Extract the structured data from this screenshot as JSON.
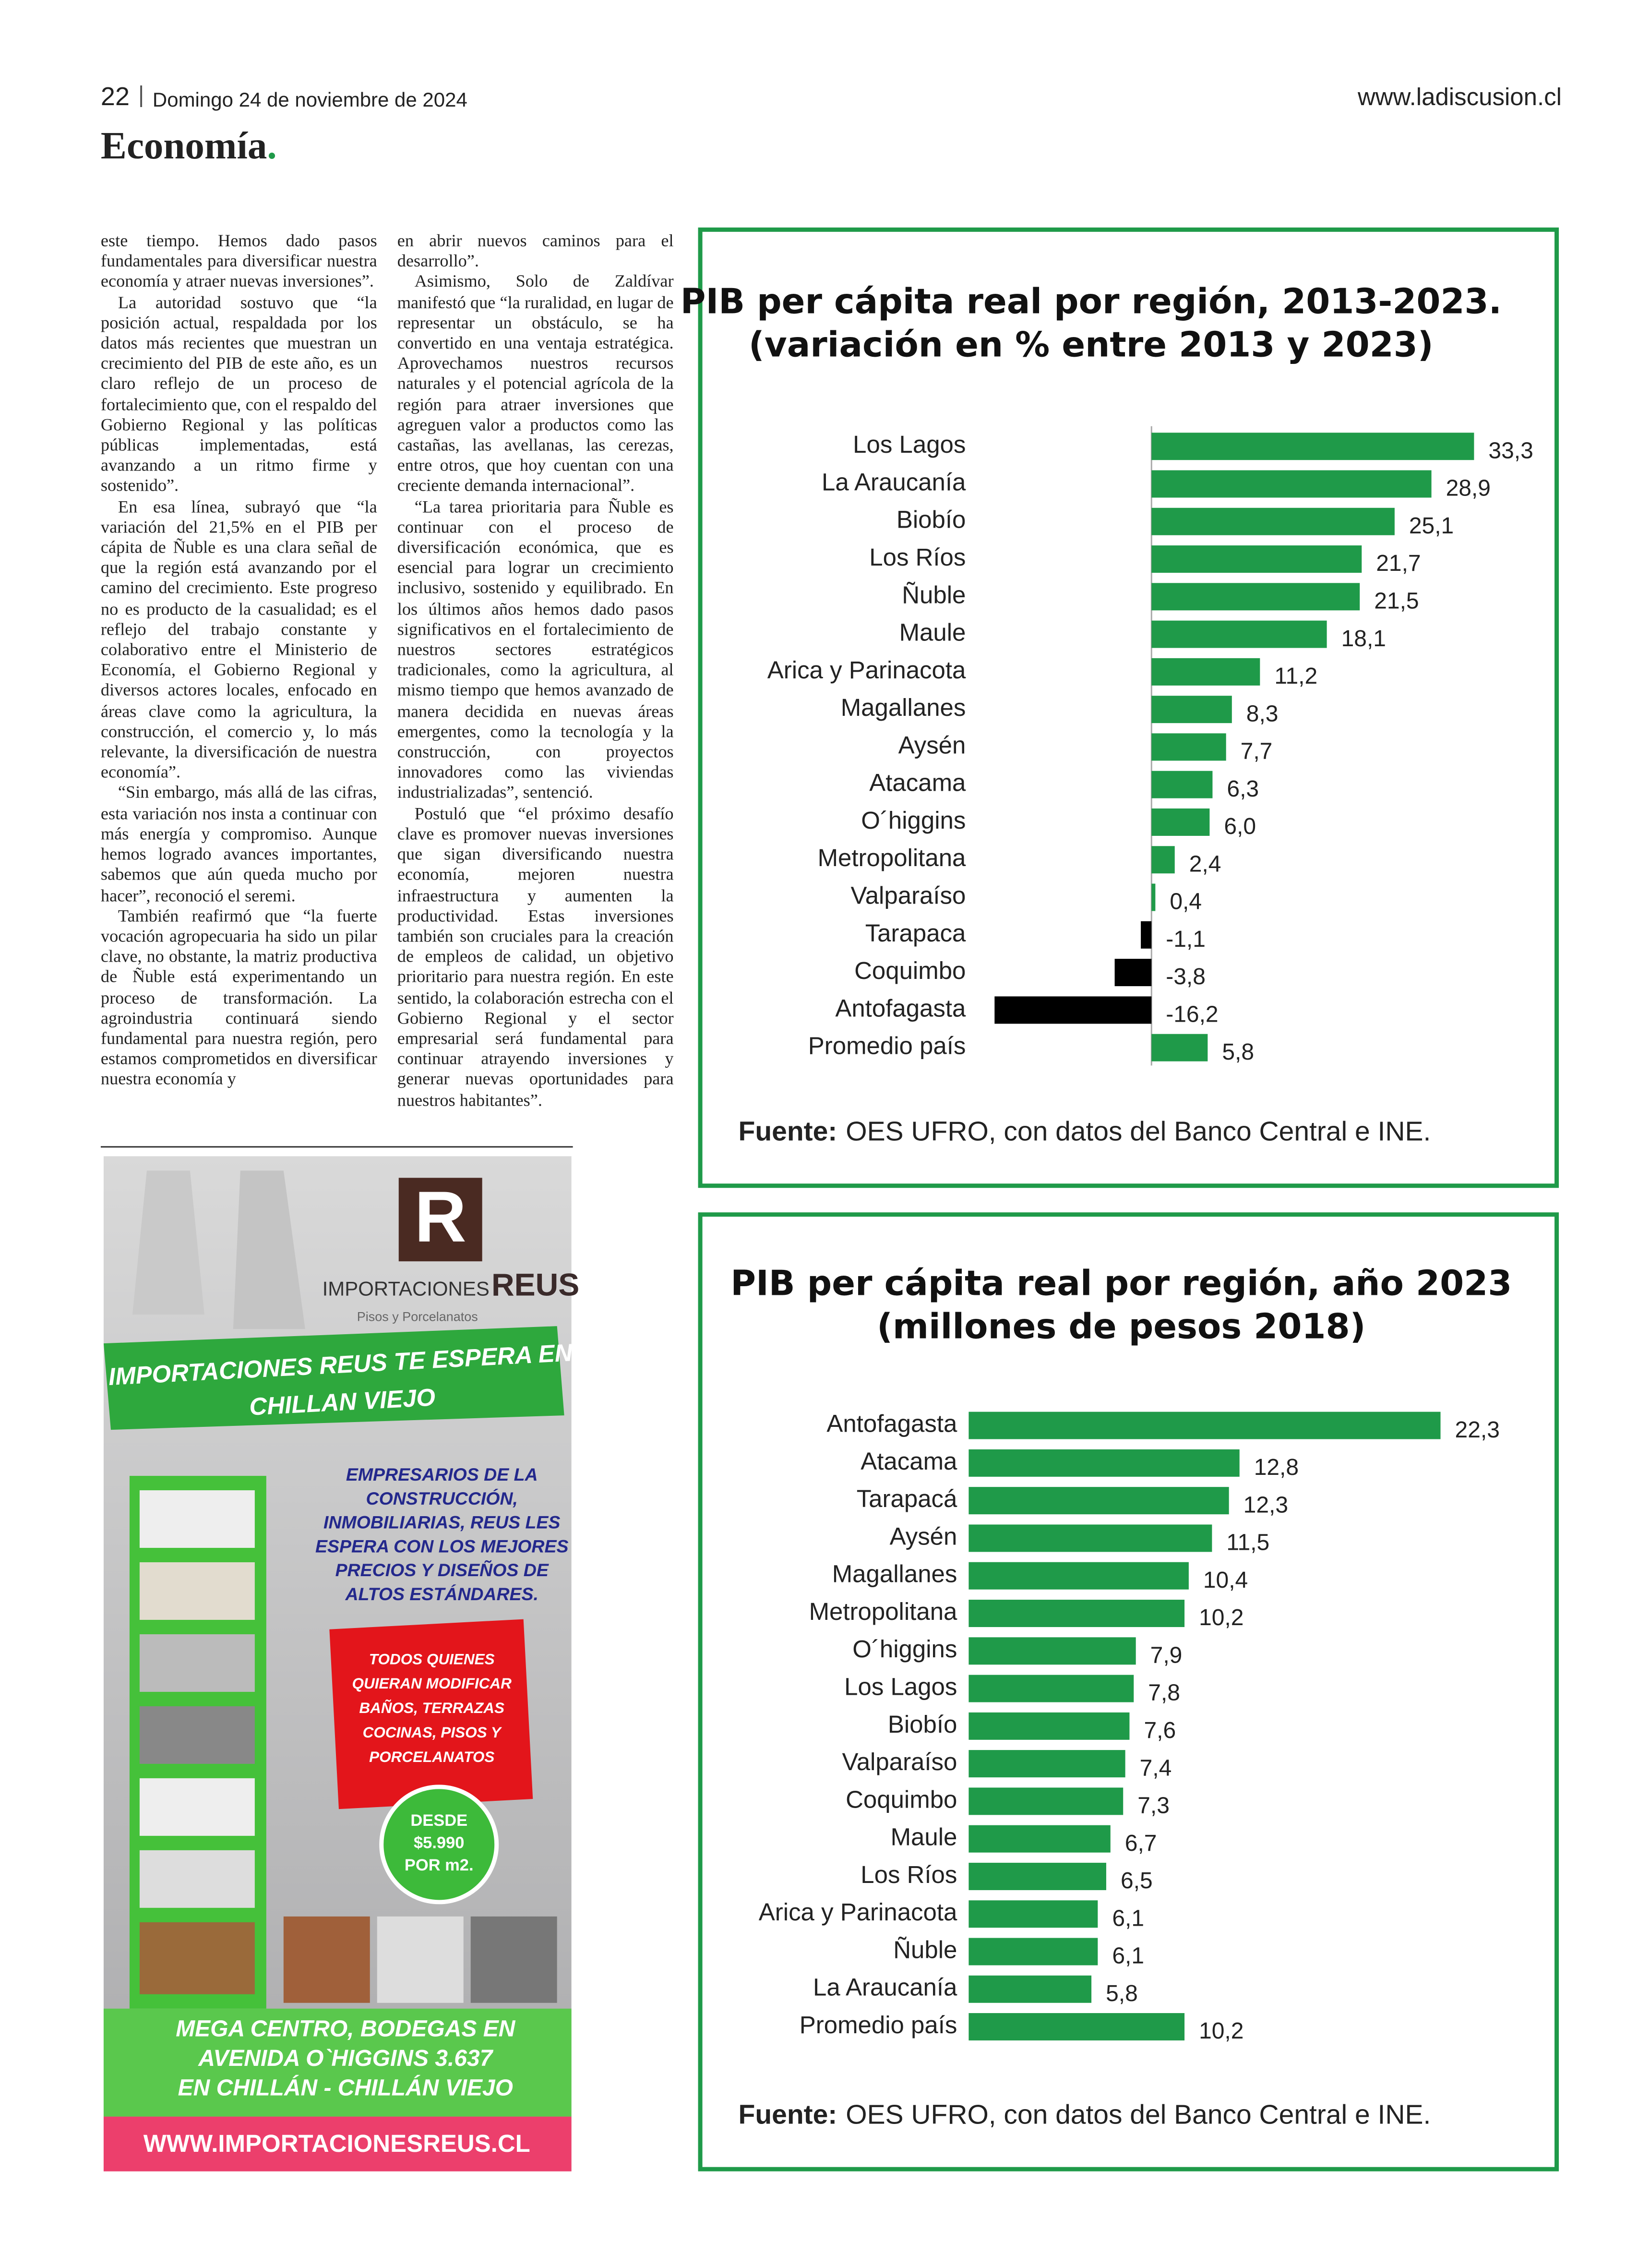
{
  "header": {
    "page_number": "22",
    "date": "Domingo 24 de noviembre de 2024",
    "website": "www.ladiscusion.cl",
    "section": "Economía"
  },
  "article": {
    "columns": [
      [
        "este tiempo. Hemos dado pasos fundamentales para diversificar nuestra economía y atraer nuevas inversiones”.",
        "La autoridad sostuvo que “la posición actual, respaldada por los datos más recientes que muestran un crecimiento del PIB de este año, es un claro reflejo de un proceso de fortalecimiento que, con el respaldo del Gobierno Regional y las políticas públicas implementadas, está avanzando a un ritmo firme y sostenido”.",
        "En esa línea, subrayó que “la variación del 21,5% en el PIB per cápita de Ñuble es una clara señal de que la región está avanzando por el camino del crecimiento. Este progreso no es producto de la casualidad; es el reflejo del trabajo constante y colaborativo entre el Ministerio de Economía, el Gobierno Regional y diversos actores locales, enfocado en áreas clave como la agricultura, la construcción, el comercio y, lo más relevante, la diversificación de nuestra economía”.",
        "“Sin embargo, más allá de las cifras, esta variación nos insta a continuar con más energía y compromiso. Aunque hemos logrado avances importantes, sabemos que aún queda mucho por hacer”, reconoció el seremi.",
        "También reafirmó que “la fuerte vocación agropecuaria ha sido un pilar clave, no obstante, la matriz productiva de Ñuble está experimentando un proceso de transformación. La agroindustria continuará siendo fundamental para nuestra región, pero estamos comprometidos en diversificar nuestra economía y"
      ],
      [
        "en abrir nuevos caminos para el desarrollo”.",
        "Asimismo, Solo de Zaldívar manifestó que “la ruralidad, en lugar de representar un obstáculo, se ha convertido en una ventaja estratégica. Aprovechamos nuestros recursos naturales y el potencial agrícola de la región para atraer inversiones que agreguen valor a productos como las castañas, las avellanas, las cerezas, entre otros, que hoy cuentan con una creciente demanda internacional”.",
        "“La tarea prioritaria para Ñuble es continuar con el proceso de diversificación económica, que es esencial para lograr un crecimiento inclusivo, sostenido y equilibrado. En los últimos años hemos dado pasos significativos en el fortalecimiento de nuestros sectores estratégicos tradicionales, como la agricultura, al mismo tiempo que hemos avanzado de manera decidida en nuevas áreas emergentes, como la tecnología y la construcción, con proyectos innovadores como las viviendas industrializadas”, sentenció.",
        "Postuló que “el próximo desafío clave es promover nuevas inversiones que sigan diversificando nuestra economía, mejoren nuestra infraestructura y aumenten la productividad. Estas inversiones también son cruciales para la creación de empleos de calidad, un objetivo prioritario para nuestra región. En este sentido, la colaboración estrecha con el Gobierno Regional y el sector empresarial será fundamental para continuar atrayendo inversiones y generar nuevas oportunidades para nuestros habitantes”."
      ]
    ]
  },
  "ad": {
    "logo_letter": "R",
    "brand_1": "IMPORTACIONES",
    "brand_2": "REUS",
    "tagline": "Pisos y Porcelanatos",
    "banner": [
      "IMPORTACIONES REUS TE ESPERA EN",
      "CHILLAN VIEJO"
    ],
    "message": [
      "EMPRESARIOS DE LA",
      "CONSTRUCCIÓN,",
      "INMOBILIARIAS, REUS LES",
      "ESPERA CON LOS MEJORES",
      "PRECIOS Y DISEÑOS DE",
      "ALTOS ESTÁNDARES."
    ],
    "offer": [
      "TODOS QUIENES",
      "QUIERAN MODIFICAR",
      "BAÑOS, TERRAZAS",
      "COCINAS, PISOS Y",
      "PORCELANATOS"
    ],
    "price": [
      "DESDE",
      "$5.990",
      "POR m2."
    ],
    "address": [
      "MEGA CENTRO, BODEGAS EN",
      "AVENIDA O`HIGGINS 3.637",
      "EN CHILLÁN - CHILLÁN VIEJO"
    ],
    "url": "WWW.IMPORTACIONESREUS.CL"
  },
  "chart_data": [
    {
      "type": "bar",
      "orientation": "horizontal",
      "title": "PIB per cápita real por región, 2013-2023.",
      "subtitle": "(variación en % entre 2013 y 2023)",
      "categories": [
        "Los Lagos",
        "La Araucanía",
        "Biobío",
        "Los Ríos",
        "Ñuble",
        "Maule",
        "Arica y Parinacota",
        "Magallanes",
        "Aysén",
        "Atacama",
        "O´higgins",
        "Metropolitana",
        "Valparaíso",
        "Tarapaca",
        "Coquimbo",
        "Antofagasta",
        "Promedio país"
      ],
      "values": [
        33.3,
        28.9,
        25.1,
        21.7,
        21.5,
        18.1,
        11.2,
        8.3,
        7.7,
        6.3,
        6.0,
        2.4,
        0.4,
        -1.1,
        -3.8,
        -16.2,
        5.8
      ],
      "value_labels": [
        "33,3",
        "28,9",
        "25,1",
        "21,7",
        "21,5",
        "18,1",
        "11,2",
        "8,3",
        "7,7",
        "6,3",
        "6,0",
        "2,4",
        "0,4",
        "-1,1",
        "-3,8",
        "-16,2",
        "5,8"
      ],
      "color": "#1f9a49",
      "negative_color": "#000000",
      "source_label": "Fuente:",
      "source": "OES UFRO, con datos del Banco Central e INE."
    },
    {
      "type": "bar",
      "orientation": "horizontal",
      "title": "PIB per cápita real por región, año 2023",
      "subtitle": "(millones de pesos 2018)",
      "categories": [
        "Antofagasta",
        "Atacama",
        "Tarapacá",
        "Aysén",
        "Magallanes",
        "Metropolitana",
        "O´higgins",
        "Los Lagos",
        "Biobío",
        "Valparaíso",
        "Coquimbo",
        "Maule",
        "Los Ríos",
        "Arica y Parinacota",
        "Ñuble",
        "La Araucanía",
        "Promedio país"
      ],
      "values": [
        22.3,
        12.8,
        12.3,
        11.5,
        10.4,
        10.2,
        7.9,
        7.8,
        7.6,
        7.4,
        7.3,
        6.7,
        6.5,
        6.1,
        6.1,
        5.8,
        10.2
      ],
      "value_labels": [
        "22,3",
        "12,8",
        "12,3",
        "11,5",
        "10,4",
        "10,2",
        "7,9",
        "7,8",
        "7,6",
        "7,4",
        "7,3",
        "6,7",
        "6,5",
        "6,1",
        "6,1",
        "5,8",
        "10,2"
      ],
      "color": "#1f9a49",
      "source_label": "Fuente:",
      "source": "OES UFRO, con datos del Banco Central e INE."
    }
  ]
}
